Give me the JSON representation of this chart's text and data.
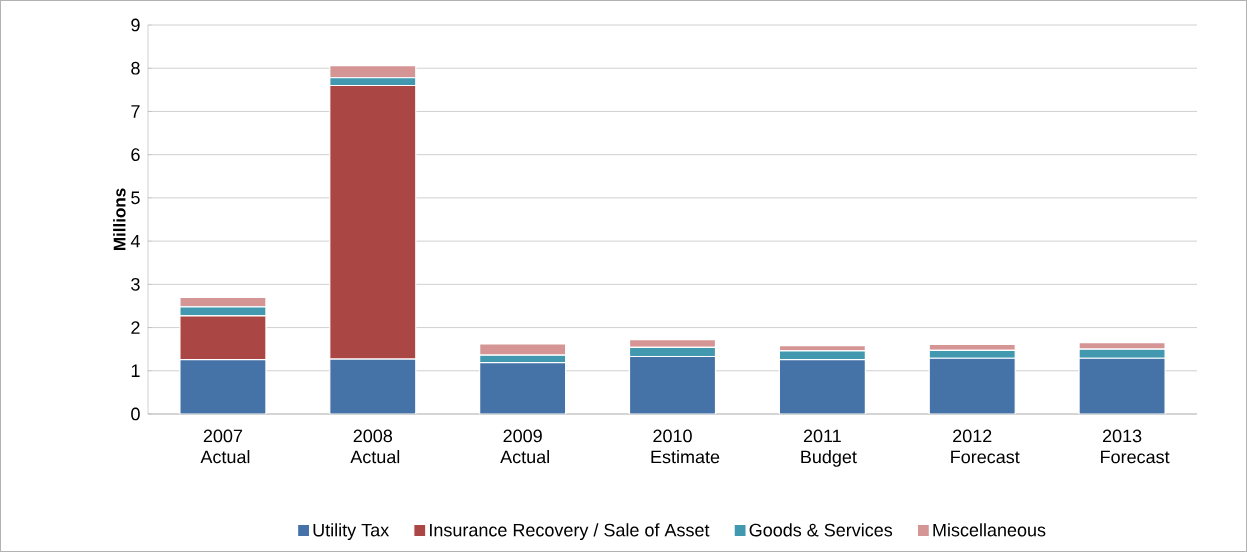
{
  "chart_data": {
    "type": "bar",
    "stacked": true,
    "ylabel": "Millions",
    "categories": [
      "2007 Actual",
      "2008 Actual",
      "2009 Actual",
      "2010 Estimate",
      "2011 Budget",
      "2012 Forecast",
      "2013 Forecast"
    ],
    "series": [
      {
        "name": "Utility Tax",
        "color": "#4572a7",
        "values": [
          1.26,
          1.27,
          1.19,
          1.33,
          1.26,
          1.29,
          1.29
        ]
      },
      {
        "name": "Insurance Recovery / Sale of Asset",
        "color": "#aa4643",
        "values": [
          1.01,
          6.33,
          0,
          0,
          0,
          0,
          0
        ]
      },
      {
        "name": "Goods & Services",
        "color": "#4198af",
        "values": [
          0.21,
          0.18,
          0.17,
          0.21,
          0.2,
          0.18,
          0.21
        ]
      },
      {
        "name": "Miscellaneous",
        "color": "#d69595",
        "values": [
          0.22,
          0.28,
          0.26,
          0.18,
          0.12,
          0.14,
          0.15
        ]
      }
    ],
    "ylim": [
      0,
      9
    ],
    "yticks": [
      0,
      1,
      2,
      3,
      4,
      5,
      6,
      7,
      8,
      9
    ],
    "grid": "y",
    "legend": "bottom"
  }
}
